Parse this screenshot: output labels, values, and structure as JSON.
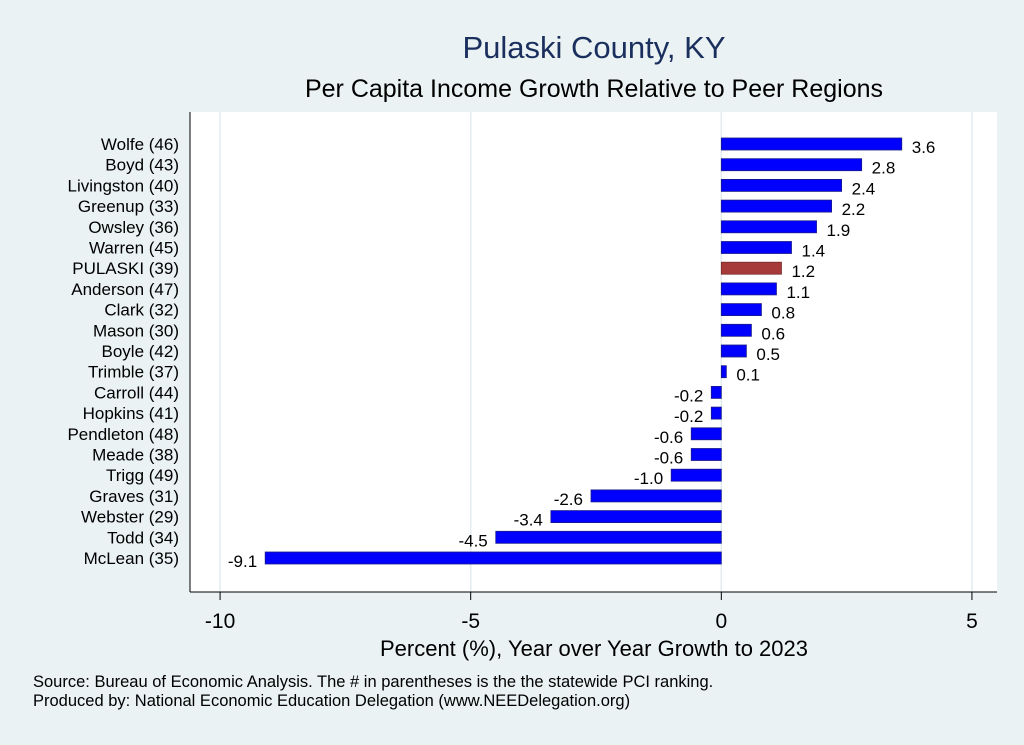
{
  "chart_data": {
    "type": "bar",
    "orientation": "horizontal",
    "title": "Pulaski County, KY",
    "subtitle": "Per Capita Income Growth Relative to Peer Regions",
    "xlabel": "Percent (%), Year over Year Growth to 2023",
    "xlim": [
      -10.6,
      5.5
    ],
    "xticks": [
      -10,
      -5,
      0,
      5
    ],
    "xtick_labels": [
      "-10",
      "-5",
      "0",
      "5"
    ],
    "grid": true,
    "categories": [
      "Wolfe (46)",
      "Boyd (43)",
      "Livingston (40)",
      "Greenup (33)",
      "Owsley (36)",
      "Warren (45)",
      "PULASKI (39)",
      "Anderson (47)",
      "Clark (32)",
      "Mason (30)",
      "Boyle (42)",
      "Trimble (37)",
      "Carroll (44)",
      "Hopkins (41)",
      "Pendleton (48)",
      "Meade (38)",
      "Trigg (49)",
      "Graves (31)",
      "Webster (29)",
      "Todd (34)",
      "McLean (35)"
    ],
    "values": [
      3.6,
      2.8,
      2.4,
      2.2,
      1.9,
      1.4,
      1.2,
      1.1,
      0.8,
      0.6,
      0.5,
      0.1,
      -0.2,
      -0.2,
      -0.6,
      -0.6,
      -1.0,
      -2.6,
      -3.4,
      -4.5,
      -9.1
    ],
    "value_labels": [
      "3.6",
      "2.8",
      "2.4",
      "2.2",
      "1.9",
      "1.4",
      "1.2",
      "1.1",
      "0.8",
      "0.6",
      "0.5",
      "0.1",
      "-0.2",
      "-0.2",
      "-0.6",
      "-0.6",
      "-1.0",
      "-2.6",
      "-3.4",
      "-4.5",
      "-9.1"
    ],
    "highlight": "PULASKI (39)",
    "colors": {
      "bar": "#0000ff",
      "highlight": "#a63a3a",
      "grid": "#e2ecee",
      "plot_bg": "#ffffff",
      "page_bg": "#eaf2f3",
      "title": "#1a2f5e"
    }
  },
  "notes": {
    "source": "Source: Bureau of Economic Analysis. The # in parentheses is the the statewide PCI ranking.",
    "produced_by": "Produced by: National Economic Education Delegation (www.NEEDelegation.org)"
  }
}
